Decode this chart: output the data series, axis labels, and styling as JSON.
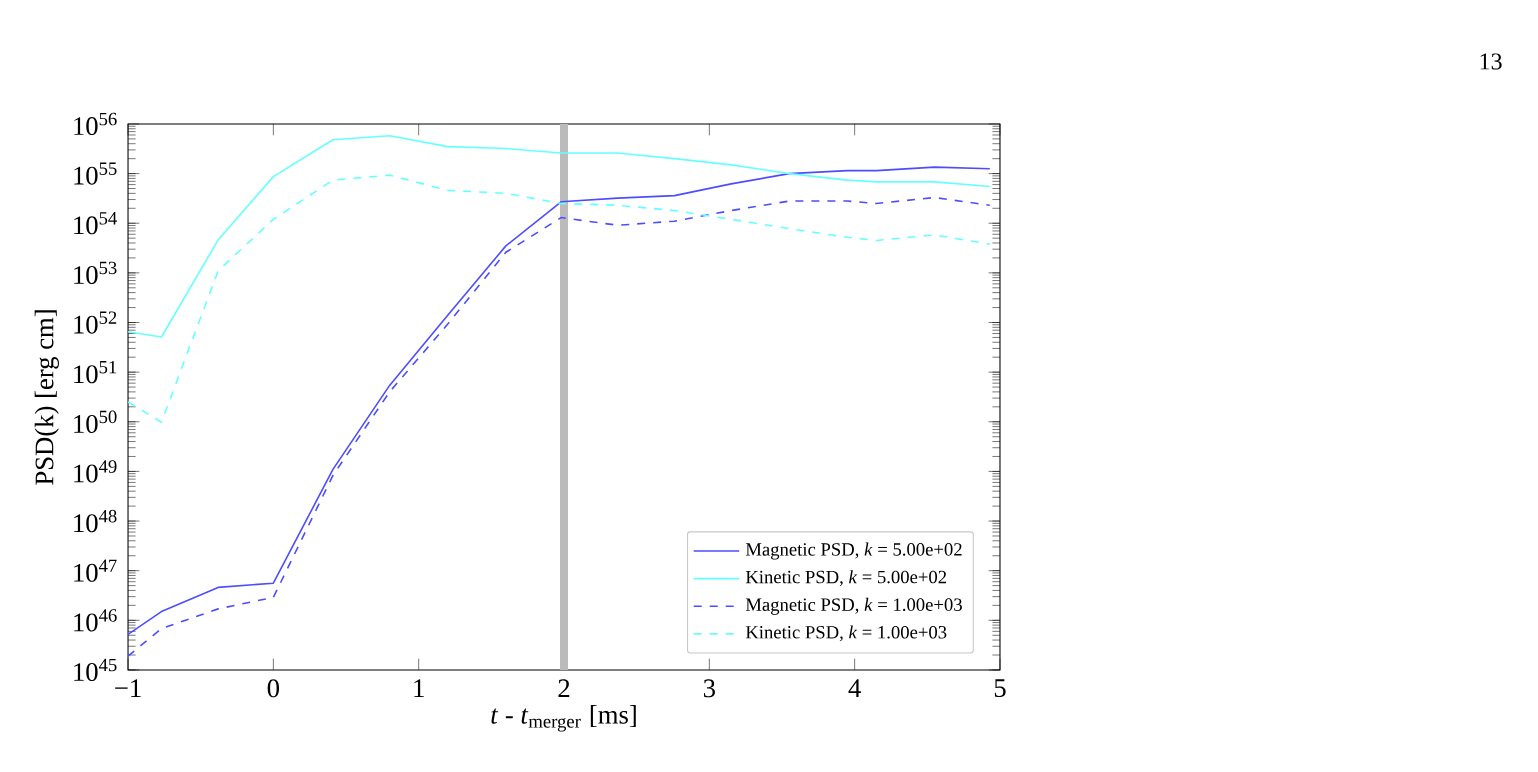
{
  "chart_data": {
    "type": "line",
    "xlabel": "*t* - *t*$_{merger}$ [ms]",
    "ylabel": "PSD(k) [erg cm]",
    "log": "y",
    "x": [
      -1,
      -0.77,
      -0.38,
      0,
      0.41,
      0.8,
      1.2,
      1.6,
      1.98,
      2.37,
      2.76,
      3.15,
      3.55,
      3.95,
      4.15,
      4.55,
      4.93
    ],
    "series": [
      {
        "name": "Magnetic PSD, *k* = 5.00e+02",
        "color": "#4d4dff",
        "line_style": "solid",
        "values": [
          5.2e+45,
          1.5e+46,
          4.6e+46,
          5.6e+46,
          1.1e+49,
          5.4e+50,
          1.4e+52,
          3.5e+53,
          2.7e+54,
          3.2e+54,
          3.6e+54,
          6.2e+54,
          1e+55,
          1.15e+55,
          1.15e+55,
          1.35e+55,
          1.25e+55
        ]
      },
      {
        "name": "Kinetic PSD, *k* = 5.00e+02",
        "color": "#66ffff",
        "line_style": "solid",
        "values": [
          6.5e+51,
          5.1e+51,
          4.6e+53,
          8.7e+54,
          4.8e+55,
          5.8e+55,
          3.5e+55,
          3.2e+55,
          2.6e+55,
          2.6e+55,
          2e+55,
          1.5e+55,
          1e+55,
          7.4e+54,
          6.8e+54,
          6.8e+54,
          5.5e+54
        ]
      },
      {
        "name": "Magnetic PSD, *k* = 1.00e+03",
        "color": "#4d4dff",
        "line_style": "dashed",
        "values": [
          1.9e+45,
          6.8e+45,
          1.7e+46,
          2.9e+46,
          8.3e+48,
          4e+50,
          9.3e+51,
          2.6e+53,
          1.3e+54,
          9.1e+53,
          1.1e+54,
          1.8e+54,
          2.8e+54,
          2.8e+54,
          2.5e+54,
          3.3e+54,
          2.3e+54
        ]
      },
      {
        "name": "Kinetic PSD, *k* = 1.00e+03",
        "color": "#66ffff",
        "line_style": "dashed",
        "values": [
          2.5e+50,
          9.8e+49,
          1.1e+53,
          1.2e+54,
          7.4e+54,
          9.3e+54,
          4.6e+54,
          4e+54,
          2.5e+54,
          2.3e+54,
          1.8e+54,
          1.2e+54,
          7.8e+53,
          5.2e+53,
          4.5e+53,
          5.8e+53,
          3.8e+53
        ]
      }
    ],
    "xlim": [
      -1,
      5
    ],
    "xticks": [
      {
        "value": -1,
        "label": "−1"
      },
      0,
      1,
      2,
      3,
      4,
      5
    ],
    "ylim": [
      1e+45,
      1e+56
    ],
    "yticks": [
      {
        "value": 1e+45,
        "label": "10$^{45}$"
      },
      {
        "value": 1e+46,
        "label": "10$^{46}$"
      },
      {
        "value": 1e+47,
        "label": "10$^{47}$"
      },
      {
        "value": 1e+48,
        "label": "10$^{48}$"
      },
      {
        "value": 1e+49,
        "label": "10$^{49}$"
      },
      {
        "value": 1e+50,
        "label": "10$^{50}$"
      },
      {
        "value": 1e+51,
        "label": "10$^{51}$"
      },
      {
        "value": 1e+52,
        "label": "10$^{52}$"
      },
      {
        "value": 1e+53,
        "label": "10$^{53}$"
      },
      {
        "value": 1e+54,
        "label": "10$^{54}$"
      },
      {
        "value": 1e+55,
        "label": "10$^{55}$"
      },
      {
        "value": 1e+56,
        "label": "10$^{56}$"
      }
    ],
    "ref_lines": [
      {
        "axis": "x",
        "value": 2,
        "color": "#bbbbbb"
      }
    ],
    "legend": "bottom right",
    "grid": false,
    "annotations": [
      "13"
    ]
  }
}
